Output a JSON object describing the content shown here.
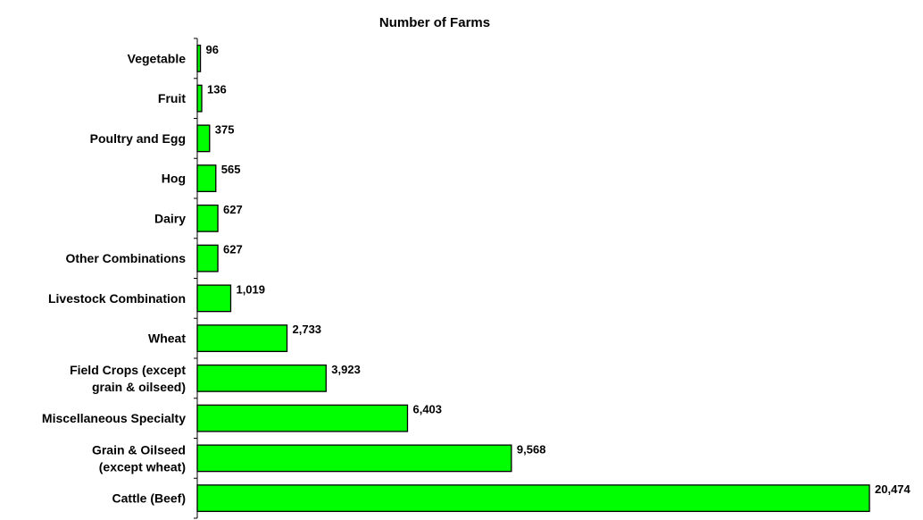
{
  "chart_data": {
    "type": "bar",
    "orientation": "horizontal",
    "title": "Number of Farms",
    "xlabel": "",
    "ylabel": "",
    "xlim": [
      0,
      20474
    ],
    "grid": false,
    "legend": "none",
    "bar_color": "#00ff00",
    "categories": [
      [
        "Vegetable"
      ],
      [
        "Fruit"
      ],
      [
        "Poultry and Egg"
      ],
      [
        "Hog"
      ],
      [
        "Dairy"
      ],
      [
        "Other Combinations"
      ],
      [
        "Livestock Combination"
      ],
      [
        "Wheat"
      ],
      [
        "Field Crops (except",
        "grain & oilseed)"
      ],
      [
        "Miscellaneous Specialty"
      ],
      [
        "Grain & Oilseed",
        "(except wheat)"
      ],
      [
        "Cattle (Beef)"
      ]
    ],
    "values": [
      96,
      136,
      375,
      565,
      627,
      627,
      1019,
      2733,
      3923,
      6403,
      9568,
      20474
    ],
    "value_labels": [
      "96",
      "136",
      "375",
      "565",
      "627",
      "627",
      "1,019",
      "2,733",
      "3,923",
      "6,403",
      "9,568",
      "20,474"
    ]
  }
}
